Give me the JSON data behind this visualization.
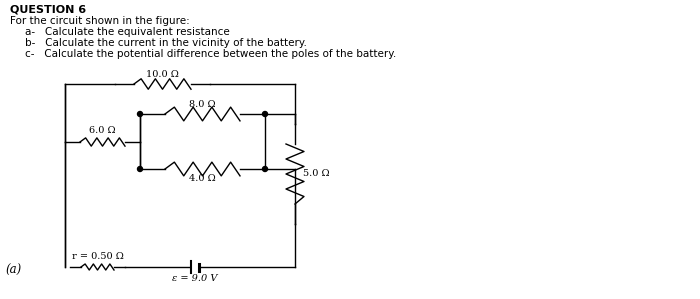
{
  "title": "QUESTION 6",
  "text_lines": [
    "For the circuit shown in the figure:",
    "a-   Calculate the equivalent resistance",
    "b-   Calculate the current in the vicinity of the battery.",
    "c-   Calculate the potential difference between the poles of the battery."
  ],
  "label_a": "(a)",
  "resistors": {
    "R10": "10.0 Ω",
    "R8": "8.0 Ω",
    "R6": "6.0 Ω",
    "R4": "4.0 Ω",
    "R5": "5.0 Ω",
    "Rr": "r = 0.50 Ω",
    "emf": "ε = 9.0 V"
  },
  "bg_color": "#ffffff",
  "line_color": "#000000",
  "text_color": "#000000",
  "font_size_title": 8,
  "font_size_body": 7.5,
  "font_size_labels": 7
}
